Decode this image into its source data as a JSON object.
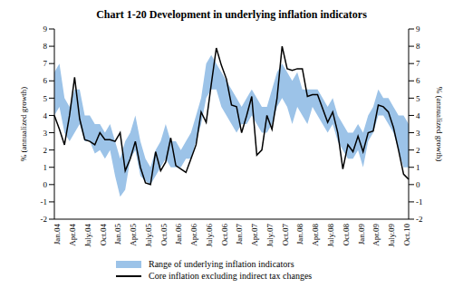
{
  "chart_data": {
    "type": "line",
    "title": "Chart 1-20 Development in underlying inflation indicators",
    "ylabel": "% (annualized growth)",
    "y2label": "% (annualized growth)",
    "categories": [
      "Jan.04",
      null,
      null,
      "Apr.04",
      null,
      null,
      "July.04",
      null,
      null,
      "Oct.04",
      null,
      null,
      "Jan.05",
      null,
      null,
      "Apr.05",
      null,
      null,
      "July.05",
      null,
      null,
      "Oct.05",
      null,
      null,
      "Jan.06",
      null,
      null,
      "Apr.06",
      null,
      null,
      "July.06",
      null,
      null,
      "Oct.06",
      null,
      null,
      "Jan.07",
      null,
      null,
      "Apr.07",
      null,
      null,
      "July.07",
      null,
      null,
      "Oct.07",
      null,
      null,
      "Jan.08",
      null,
      null,
      "Apr.08",
      null,
      null,
      "July.08",
      null,
      null,
      "Oct.08",
      null,
      null,
      "Jan.09",
      null,
      null,
      "Apr.09",
      null,
      null,
      "July.09",
      null,
      null,
      "Oct.10",
      null
    ],
    "ylim": [
      -2,
      9
    ],
    "yticks": [
      -2,
      -1,
      0,
      1,
      2,
      3,
      4,
      5,
      6,
      7,
      8,
      9
    ],
    "y2lim": [
      -2,
      9
    ],
    "y2ticks": [
      -2,
      -1,
      0,
      1,
      2,
      3,
      4,
      5,
      6,
      7,
      8,
      9
    ],
    "grid": false,
    "legend": "bottom",
    "series": [
      {
        "name": "Range of underlying inflation indicators",
        "type": "range",
        "color": "#9cc3e8",
        "low": [
          4.0,
          4.5,
          3.0,
          2.5,
          3.0,
          3.5,
          2.5,
          2.5,
          1.8,
          2.0,
          1.5,
          2.0,
          0.5,
          -0.7,
          -0.3,
          1.5,
          2.0,
          0.5,
          0.2,
          0.0,
          0.5,
          1.0,
          1.5,
          1.0,
          1.0,
          1.0,
          1.5,
          1.5,
          2.5,
          3.5,
          5.0,
          5.5,
          5.5,
          4.5,
          4.0,
          3.5,
          3.0,
          3.5,
          3.5,
          4.0,
          3.5,
          3.0,
          3.0,
          3.5,
          4.5,
          5.0,
          4.5,
          3.5,
          4.5,
          4.0,
          3.5,
          4.5,
          4.0,
          3.5,
          3.0,
          3.5,
          2.5,
          2.0,
          1.5,
          1.5,
          2.0,
          1.0,
          2.5,
          3.0,
          4.0,
          4.0,
          3.5,
          3.0,
          2.0,
          1.0,
          1.0
        ],
        "high": [
          6.5,
          7.0,
          5.0,
          4.5,
          5.5,
          5.5,
          4.0,
          4.0,
          3.5,
          3.5,
          3.0,
          3.5,
          2.5,
          1.5,
          2.5,
          3.0,
          4.0,
          2.5,
          1.5,
          1.0,
          2.0,
          2.5,
          3.5,
          2.5,
          2.5,
          2.0,
          2.5,
          3.0,
          4.0,
          5.0,
          7.0,
          7.5,
          7.0,
          6.5,
          6.0,
          5.5,
          5.0,
          4.5,
          5.0,
          5.5,
          5.0,
          4.5,
          4.5,
          5.5,
          6.5,
          7.0,
          6.5,
          6.0,
          6.5,
          5.5,
          5.5,
          5.5,
          5.5,
          5.0,
          4.5,
          5.0,
          4.0,
          3.5,
          3.0,
          3.0,
          3.5,
          3.0,
          4.0,
          4.5,
          5.5,
          5.0,
          5.0,
          4.5,
          4.0,
          4.0,
          3.5
        ]
      },
      {
        "name": "Core inflation excluding indirect tax changes",
        "type": "line",
        "color": "#000000",
        "values": [
          4.0,
          3.2,
          2.3,
          4.0,
          6.2,
          3.8,
          2.6,
          2.5,
          2.3,
          3.0,
          2.6,
          2.6,
          2.5,
          3.0,
          0.8,
          1.5,
          2.5,
          1.0,
          0.1,
          0.0,
          1.9,
          0.8,
          1.3,
          2.7,
          1.1,
          0.9,
          0.7,
          1.5,
          2.3,
          4.2,
          3.6,
          5.8,
          7.9,
          6.9,
          6.1,
          4.6,
          4.5,
          3.0,
          4.0,
          5.1,
          1.7,
          2.0,
          4.0,
          3.2,
          5.0,
          8.0,
          6.7,
          6.6,
          6.7,
          6.7,
          5.1,
          5.2,
          5.2,
          4.4,
          3.6,
          4.2,
          3.0,
          0.9,
          2.3,
          1.9,
          2.8,
          1.9,
          3.0,
          3.1,
          4.6,
          4.5,
          4.2,
          3.3,
          2.0,
          0.6,
          0.3
        ]
      }
    ]
  }
}
